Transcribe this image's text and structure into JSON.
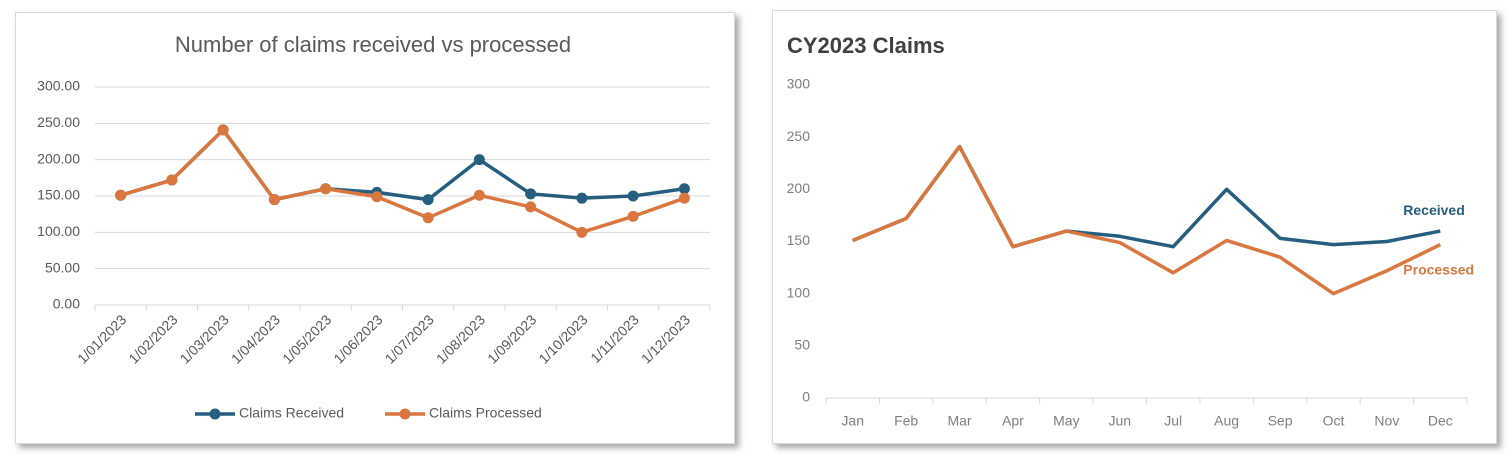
{
  "chart_data": [
    {
      "type": "line",
      "title": "Number of claims received vs processed",
      "categories": [
        "1/01/2023",
        "1/02/2023",
        "1/03/2023",
        "1/04/2023",
        "1/05/2023",
        "1/06/2023",
        "1/07/2023",
        "1/08/2023",
        "1/09/2023",
        "1/10/2023",
        "1/11/2023",
        "1/12/2023"
      ],
      "series": [
        {
          "name": "Claims Received",
          "color": "#255e7e",
          "values": [
            151,
            172,
            241,
            145,
            160,
            155,
            145,
            200,
            153,
            147,
            150,
            160
          ]
        },
        {
          "name": "Claims Processed",
          "color": "#d9773f",
          "values": [
            151,
            172,
            241,
            145,
            160,
            149,
            120,
            151,
            135,
            100,
            122,
            147
          ]
        }
      ],
      "ylim": [
        0,
        300
      ],
      "yticks": [
        {
          "value": 0,
          "label": "0.00"
        },
        {
          "value": 50,
          "label": "50.00"
        },
        {
          "value": 100,
          "label": "100.00"
        },
        {
          "value": 150,
          "label": "150.00"
        },
        {
          "value": 200,
          "label": "200.00"
        },
        {
          "value": 250,
          "label": "250.00"
        },
        {
          "value": 300,
          "label": "300.00"
        }
      ],
      "grid": true,
      "markers": true,
      "legend": "bottom"
    },
    {
      "type": "line",
      "title": "CY2023 Claims",
      "categories": [
        "Jan",
        "Feb",
        "Mar",
        "Apr",
        "May",
        "Jun",
        "Jul",
        "Aug",
        "Sep",
        "Oct",
        "Nov",
        "Dec"
      ],
      "series": [
        {
          "name": "Received",
          "color": "#255e7e",
          "values": [
            151,
            172,
            241,
            145,
            160,
            155,
            145,
            200,
            153,
            147,
            150,
            160
          ]
        },
        {
          "name": "Processed",
          "color": "#d9773f",
          "values": [
            151,
            172,
            241,
            145,
            160,
            149,
            120,
            151,
            135,
            100,
            122,
            147
          ]
        }
      ],
      "ylim": [
        0,
        300
      ],
      "yticks": [
        0,
        50,
        100,
        150,
        200,
        250,
        300
      ],
      "grid": false,
      "markers": false,
      "legend": "line-end"
    }
  ]
}
